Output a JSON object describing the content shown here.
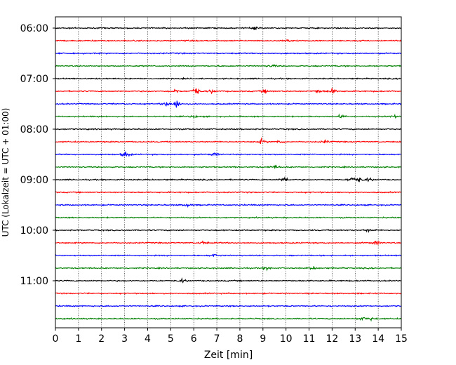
{
  "chart_data": {
    "type": "line",
    "title": "",
    "xlabel": "Zeit  [min]",
    "ylabel": "UTC (Lokalzeit = UTC + 01:00)",
    "xlim": [
      0,
      15
    ],
    "x_ticks": [
      0,
      1,
      2,
      3,
      4,
      5,
      6,
      7,
      8,
      9,
      10,
      11,
      12,
      13,
      14,
      15
    ],
    "y_tick_labels": [
      "06:00",
      "07:00",
      "08:00",
      "09:00",
      "10:00",
      "11:00"
    ],
    "grid": "vertical dotted",
    "trace_colors": [
      "#000000",
      "#ff0000",
      "#0000ff",
      "#008000"
    ],
    "series": [
      {
        "start": "06:00",
        "color": "#000000",
        "events": [
          {
            "t": 8.7,
            "amp": 0.35
          }
        ]
      },
      {
        "start": "06:15",
        "color": "#ff0000",
        "events": [
          {
            "t": 10.1,
            "amp": 0.3
          }
        ]
      },
      {
        "start": "06:30",
        "color": "#0000ff",
        "events": []
      },
      {
        "start": "06:45",
        "color": "#008000",
        "events": [
          {
            "t": 9.4,
            "amp": 0.3
          }
        ]
      },
      {
        "start": "07:00",
        "color": "#000000",
        "events": []
      },
      {
        "start": "07:15",
        "color": "#ff0000",
        "events": [
          {
            "t": 5.2,
            "amp": 0.45
          },
          {
            "t": 6.1,
            "amp": 0.95
          },
          {
            "t": 6.8,
            "amp": 0.35
          },
          {
            "t": 9.1,
            "amp": 0.3
          },
          {
            "t": 11.4,
            "amp": 0.4
          },
          {
            "t": 12.0,
            "amp": 0.5
          }
        ]
      },
      {
        "start": "07:30",
        "color": "#0000ff",
        "events": [
          {
            "t": 4.8,
            "amp": 0.45
          },
          {
            "t": 5.25,
            "amp": 0.85
          }
        ]
      },
      {
        "start": "07:45",
        "color": "#008000",
        "events": [
          {
            "t": 6.0,
            "amp": 0.3
          },
          {
            "t": 12.4,
            "amp": 0.45
          },
          {
            "t": 14.7,
            "amp": 0.35
          }
        ]
      },
      {
        "start": "08:00",
        "color": "#000000",
        "events": []
      },
      {
        "start": "08:15",
        "color": "#ff0000",
        "events": [
          {
            "t": 8.95,
            "amp": 0.45
          },
          {
            "t": 9.7,
            "amp": 0.35
          },
          {
            "t": 11.7,
            "amp": 0.3
          }
        ]
      },
      {
        "start": "08:30",
        "color": "#0000ff",
        "events": [
          {
            "t": 3.05,
            "amp": 0.6
          },
          {
            "t": 6.9,
            "amp": 0.35
          }
        ]
      },
      {
        "start": "08:45",
        "color": "#008000",
        "events": [
          {
            "t": 9.5,
            "amp": 0.35
          }
        ]
      },
      {
        "start": "09:00",
        "color": "#000000",
        "events": [
          {
            "t": 9.95,
            "amp": 0.6
          },
          {
            "t": 12.85,
            "amp": 0.55
          },
          {
            "t": 13.2,
            "amp": 0.45
          },
          {
            "t": 13.6,
            "amp": 0.35
          }
        ]
      },
      {
        "start": "09:15",
        "color": "#ff0000",
        "events": []
      },
      {
        "start": "09:30",
        "color": "#0000ff",
        "events": [
          {
            "t": 5.7,
            "amp": 0.35
          }
        ]
      },
      {
        "start": "09:45",
        "color": "#008000",
        "events": []
      },
      {
        "start": "10:00",
        "color": "#000000",
        "events": [
          {
            "t": 13.6,
            "amp": 0.3
          }
        ]
      },
      {
        "start": "10:15",
        "color": "#ff0000",
        "events": [
          {
            "t": 6.4,
            "amp": 0.3
          },
          {
            "t": 13.9,
            "amp": 0.45
          }
        ]
      },
      {
        "start": "10:30",
        "color": "#0000ff",
        "events": [
          {
            "t": 6.9,
            "amp": 0.35
          }
        ]
      },
      {
        "start": "10:45",
        "color": "#008000",
        "events": [
          {
            "t": 9.2,
            "amp": 0.3
          },
          {
            "t": 11.2,
            "amp": 0.3
          }
        ]
      },
      {
        "start": "11:00",
        "color": "#000000",
        "events": [
          {
            "t": 5.5,
            "amp": 0.35
          }
        ]
      },
      {
        "start": "11:15",
        "color": "#ff0000",
        "events": []
      },
      {
        "start": "11:30",
        "color": "#0000ff",
        "events": []
      },
      {
        "start": "11:45",
        "color": "#008000",
        "events": [
          {
            "t": 13.3,
            "amp": 0.35
          },
          {
            "t": 13.7,
            "amp": 0.3
          }
        ]
      }
    ]
  }
}
